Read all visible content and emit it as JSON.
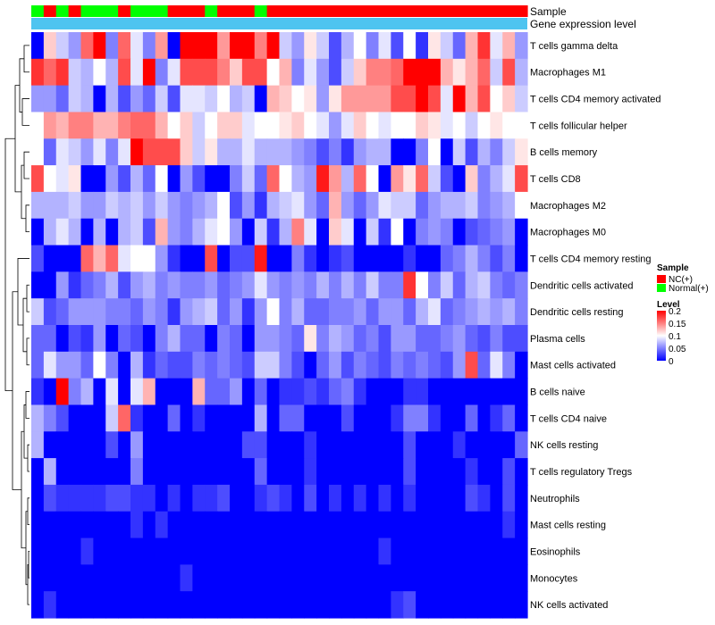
{
  "chart_data": {
    "type": "heatmap",
    "title": "",
    "annotation_labels": {
      "sample": "Sample",
      "gene_expression": "Gene expression level"
    },
    "rows": [
      "T cells gamma delta",
      "Macrophages M1",
      "T cells CD4 memory activated",
      "T cells follicular helper",
      "B cells memory",
      "T cells CD8",
      "Macrophages M2",
      "Macrophages M0",
      "T cells CD4 memory resting",
      "Dendritic cells activated",
      "Dendritic cells resting",
      "Plasma cells",
      "Mast cells activated",
      "B cells naive",
      "T cells CD4 naive",
      "NK cells resting",
      "T cells regulatory  Tregs",
      "Neutrophils",
      "Mast cells resting",
      "Eosinophils",
      "Monocytes",
      "NK cells activated"
    ],
    "samples": [
      "G",
      "R",
      "G",
      "R",
      "G",
      "G",
      "G",
      "R",
      "G",
      "G",
      "G",
      "R",
      "R",
      "R",
      "G",
      "R",
      "R",
      "R",
      "G",
      "R",
      "R",
      "R",
      "R",
      "R",
      "R",
      "R",
      "R",
      "R",
      "R",
      "R",
      "R",
      "R",
      "R",
      "R",
      "R",
      "R",
      "R",
      "R",
      "R",
      "R"
    ],
    "values": [
      [
        0.0,
        0.12,
        0.08,
        0.06,
        0.16,
        0.2,
        0.05,
        0.16,
        0.09,
        0.05,
        0.14,
        0.0,
        0.2,
        0.2,
        0.2,
        0.14,
        0.2,
        0.2,
        0.15,
        0.2,
        0.08,
        0.06,
        0.11,
        0.08,
        0.03,
        0.07,
        0.1,
        0.05,
        0.09,
        0.03,
        0.1,
        0.02,
        0.11,
        0.08,
        0.04,
        0.13,
        0.18,
        0.09,
        0.13,
        0.06
      ],
      [
        0.18,
        0.16,
        0.18,
        0.08,
        0.07,
        0.1,
        0.07,
        0.17,
        0.09,
        0.2,
        0.05,
        0.09,
        0.17,
        0.17,
        0.17,
        0.15,
        0.12,
        0.17,
        0.17,
        0.1,
        0.13,
        0.05,
        0.09,
        0.06,
        0.03,
        0.08,
        0.12,
        0.15,
        0.15,
        0.16,
        0.2,
        0.2,
        0.2,
        0.13,
        0.11,
        0.13,
        0.16,
        0.08,
        0.17,
        0.07
      ],
      [
        0.06,
        0.06,
        0.04,
        0.08,
        0.07,
        0.0,
        0.07,
        0.03,
        0.06,
        0.04,
        0.08,
        0.03,
        0.09,
        0.09,
        0.08,
        0.1,
        0.07,
        0.08,
        0.0,
        0.13,
        0.12,
        0.1,
        0.11,
        0.06,
        0.11,
        0.14,
        0.14,
        0.14,
        0.14,
        0.17,
        0.17,
        0.2,
        0.17,
        0.09,
        0.2,
        0.13,
        0.17,
        0.1,
        0.12,
        0.08
      ],
      [
        0.1,
        0.14,
        0.13,
        0.15,
        0.15,
        0.13,
        0.13,
        0.15,
        0.16,
        0.16,
        0.13,
        0.1,
        0.12,
        0.08,
        0.1,
        0.12,
        0.12,
        0.09,
        0.1,
        0.1,
        0.11,
        0.12,
        0.1,
        0.09,
        0.06,
        0.09,
        0.12,
        0.1,
        0.09,
        0.1,
        0.1,
        0.12,
        0.11,
        0.09,
        0.1,
        0.08,
        0.1,
        0.11,
        0.1,
        0.1
      ],
      [
        0.1,
        0.04,
        0.09,
        0.08,
        0.06,
        0.09,
        0.05,
        0.09,
        0.2,
        0.17,
        0.17,
        0.17,
        0.12,
        0.08,
        0.11,
        0.07,
        0.07,
        0.09,
        0.07,
        0.07,
        0.07,
        0.06,
        0.05,
        0.03,
        0.05,
        0.02,
        0.06,
        0.07,
        0.07,
        0.0,
        0.0,
        0.05,
        0.1,
        0.0,
        0.08,
        0.03,
        0.07,
        0.05,
        0.08,
        0.11
      ],
      [
        0.17,
        0.1,
        0.09,
        0.11,
        0.0,
        0.0,
        0.06,
        0.03,
        0.07,
        0.04,
        0.1,
        0.0,
        0.06,
        0.03,
        0.0,
        0.0,
        0.05,
        0.08,
        0.04,
        0.16,
        0.1,
        0.07,
        0.06,
        0.19,
        0.14,
        0.07,
        0.16,
        0.1,
        0.0,
        0.14,
        0.11,
        0.16,
        0.08,
        0.03,
        0.0,
        0.12,
        0.05,
        0.07,
        0.09,
        0.17
      ],
      [
        0.07,
        0.07,
        0.07,
        0.08,
        0.06,
        0.06,
        0.08,
        0.07,
        0.08,
        0.06,
        0.08,
        0.06,
        0.05,
        0.06,
        0.07,
        0.1,
        0.03,
        0.06,
        0.02,
        0.07,
        0.08,
        0.09,
        0.06,
        0.04,
        0.13,
        0.06,
        0.04,
        0.06,
        0.09,
        0.08,
        0.08,
        0.04,
        0.06,
        0.07,
        0.07,
        0.08,
        0.05,
        0.06,
        0.07,
        0.1
      ],
      [
        0.0,
        0.07,
        0.09,
        0.07,
        0.0,
        0.07,
        0.0,
        0.07,
        0.08,
        0.03,
        0.13,
        0.06,
        0.05,
        0.07,
        0.09,
        0.1,
        0.06,
        0.0,
        0.08,
        0.02,
        0.07,
        0.15,
        0.09,
        0.0,
        0.12,
        0.09,
        0.0,
        0.08,
        0.02,
        0.1,
        0.0,
        0.05,
        0.06,
        0.05,
        0.0,
        0.03,
        0.04,
        0.05,
        0.06,
        0.0
      ],
      [
        0.03,
        0.0,
        0.0,
        0.0,
        0.16,
        0.13,
        0.16,
        0.09,
        0.1,
        0.1,
        0.06,
        0.02,
        0.0,
        0.0,
        0.17,
        0.0,
        0.03,
        0.03,
        0.19,
        0.0,
        0.0,
        0.05,
        0.02,
        0.0,
        0.02,
        0.03,
        0.0,
        0.0,
        0.0,
        0.0,
        0.02,
        0.0,
        0.0,
        0.04,
        0.05,
        0.07,
        0.05,
        0.03,
        0.05,
        0.0
      ],
      [
        0.0,
        0.0,
        0.06,
        0.02,
        0.04,
        0.05,
        0.07,
        0.03,
        0.06,
        0.07,
        0.05,
        0.06,
        0.05,
        0.05,
        0.06,
        0.04,
        0.05,
        0.06,
        0.09,
        0.06,
        0.05,
        0.06,
        0.05,
        0.07,
        0.05,
        0.07,
        0.05,
        0.08,
        0.05,
        0.05,
        0.18,
        0.1,
        0.05,
        0.08,
        0.04,
        0.07,
        0.08,
        0.05,
        0.04,
        0.05
      ],
      [
        0.08,
        0.03,
        0.04,
        0.06,
        0.06,
        0.06,
        0.05,
        0.05,
        0.04,
        0.06,
        0.05,
        0.02,
        0.06,
        0.07,
        0.08,
        0.04,
        0.06,
        0.02,
        0.06,
        0.1,
        0.05,
        0.07,
        0.04,
        0.04,
        0.05,
        0.05,
        0.06,
        0.04,
        0.06,
        0.06,
        0.04,
        0.07,
        0.09,
        0.04,
        0.05,
        0.06,
        0.07,
        0.06,
        0.07,
        0.05
      ],
      [
        0.04,
        0.04,
        0.0,
        0.03,
        0.02,
        0.06,
        0.0,
        0.04,
        0.03,
        0.0,
        0.05,
        0.07,
        0.04,
        0.04,
        0.0,
        0.05,
        0.04,
        0.0,
        0.06,
        0.06,
        0.05,
        0.04,
        0.11,
        0.05,
        0.07,
        0.06,
        0.04,
        0.05,
        0.03,
        0.06,
        0.06,
        0.04,
        0.04,
        0.05,
        0.06,
        0.04,
        0.03,
        0.05,
        0.03,
        0.03
      ],
      [
        0.04,
        0.09,
        0.06,
        0.06,
        0.04,
        0.1,
        0.05,
        0.0,
        0.07,
        0.02,
        0.04,
        0.03,
        0.03,
        0.05,
        0.04,
        0.05,
        0.04,
        0.03,
        0.08,
        0.08,
        0.05,
        0.03,
        0.0,
        0.04,
        0.06,
        0.03,
        0.05,
        0.04,
        0.03,
        0.05,
        0.04,
        0.05,
        0.04,
        0.03,
        0.06,
        0.17,
        0.04,
        0.09,
        0.05,
        0.0
      ],
      [
        0.02,
        0.0,
        0.2,
        0.05,
        0.07,
        0.0,
        0.09,
        0.0,
        0.09,
        0.13,
        0.0,
        0.0,
        0.0,
        0.13,
        0.04,
        0.04,
        0.06,
        0.0,
        0.04,
        0.0,
        0.02,
        0.02,
        0.03,
        0.02,
        0.04,
        0.05,
        0.02,
        0.0,
        0.0,
        0.0,
        0.02,
        0.02,
        0.0,
        0.0,
        0.0,
        0.0,
        0.0,
        0.0,
        0.0,
        0.0
      ],
      [
        0.07,
        0.05,
        0.03,
        0.0,
        0.0,
        0.0,
        0.08,
        0.16,
        0.02,
        0.0,
        0.0,
        0.04,
        0.0,
        0.02,
        0.0,
        0.0,
        0.0,
        0.0,
        0.07,
        0.0,
        0.04,
        0.04,
        0.0,
        0.0,
        0.0,
        0.03,
        0.0,
        0.0,
        0.0,
        0.02,
        0.05,
        0.05,
        0.02,
        0.0,
        0.0,
        0.04,
        0.0,
        0.02,
        0.04,
        0.0
      ],
      [
        0.07,
        0.0,
        0.0,
        0.0,
        0.0,
        0.0,
        0.03,
        0.0,
        0.06,
        0.0,
        0.0,
        0.0,
        0.0,
        0.0,
        0.0,
        0.0,
        0.0,
        0.03,
        0.03,
        0.0,
        0.0,
        0.0,
        0.02,
        0.0,
        0.0,
        0.0,
        0.0,
        0.0,
        0.0,
        0.0,
        0.03,
        0.0,
        0.0,
        0.0,
        0.02,
        0.0,
        0.0,
        0.0,
        0.0,
        0.04
      ],
      [
        0.0,
        0.07,
        0.0,
        0.0,
        0.0,
        0.0,
        0.0,
        0.0,
        0.05,
        0.0,
        0.0,
        0.0,
        0.0,
        0.0,
        0.0,
        0.0,
        0.0,
        0.0,
        0.04,
        0.0,
        0.0,
        0.0,
        0.02,
        0.0,
        0.0,
        0.0,
        0.0,
        0.0,
        0.0,
        0.0,
        0.03,
        0.0,
        0.0,
        0.0,
        0.0,
        0.02,
        0.0,
        0.0,
        0.03,
        0.0
      ],
      [
        0.0,
        0.03,
        0.02,
        0.02,
        0.02,
        0.02,
        0.03,
        0.03,
        0.02,
        0.02,
        0.0,
        0.02,
        0.0,
        0.02,
        0.02,
        0.03,
        0.0,
        0.0,
        0.02,
        0.03,
        0.02,
        0.0,
        0.03,
        0.0,
        0.02,
        0.0,
        0.02,
        0.0,
        0.02,
        0.0,
        0.02,
        0.0,
        0.0,
        0.0,
        0.0,
        0.03,
        0.02,
        0.0,
        0.03,
        0.0
      ],
      [
        0.0,
        0.0,
        0.0,
        0.0,
        0.0,
        0.0,
        0.0,
        0.0,
        0.02,
        0.0,
        0.02,
        0.0,
        0.0,
        0.0,
        0.0,
        0.0,
        0.0,
        0.0,
        0.0,
        0.0,
        0.0,
        0.0,
        0.0,
        0.0,
        0.0,
        0.0,
        0.0,
        0.0,
        0.0,
        0.0,
        0.0,
        0.0,
        0.0,
        0.0,
        0.0,
        0.0,
        0.0,
        0.0,
        0.02,
        0.0
      ],
      [
        0.0,
        0.0,
        0.0,
        0.0,
        0.02,
        0.0,
        0.0,
        0.0,
        0.0,
        0.0,
        0.0,
        0.0,
        0.0,
        0.0,
        0.0,
        0.0,
        0.0,
        0.0,
        0.0,
        0.0,
        0.0,
        0.0,
        0.0,
        0.0,
        0.0,
        0.0,
        0.0,
        0.0,
        0.02,
        0.0,
        0.0,
        0.0,
        0.0,
        0.0,
        0.0,
        0.0,
        0.0,
        0.0,
        0.0,
        0.0
      ],
      [
        0.0,
        0.0,
        0.0,
        0.0,
        0.0,
        0.0,
        0.0,
        0.0,
        0.0,
        0.0,
        0.0,
        0.0,
        0.02,
        0.0,
        0.0,
        0.0,
        0.0,
        0.0,
        0.0,
        0.0,
        0.0,
        0.0,
        0.0,
        0.0,
        0.0,
        0.0,
        0.0,
        0.0,
        0.0,
        0.0,
        0.0,
        0.0,
        0.0,
        0.0,
        0.0,
        0.0,
        0.0,
        0.0,
        0.0,
        0.0
      ],
      [
        0.0,
        0.02,
        0.0,
        0.0,
        0.0,
        0.0,
        0.0,
        0.0,
        0.0,
        0.0,
        0.0,
        0.0,
        0.0,
        0.0,
        0.0,
        0.0,
        0.0,
        0.0,
        0.0,
        0.0,
        0.0,
        0.0,
        0.0,
        0.0,
        0.0,
        0.0,
        0.0,
        0.0,
        0.0,
        0.02,
        0.03,
        0.0,
        0.0,
        0.0,
        0.0,
        0.0,
        0.0,
        0.0,
        0.0,
        0.0
      ]
    ],
    "color_scale": {
      "min": 0,
      "max": 0.2,
      "low_color": "#0000ff",
      "mid_color": "#ffffff",
      "high_color": "#ff0000",
      "mid_value": 0.1
    },
    "legend": {
      "sample_title": "Sample",
      "sample_items": [
        {
          "label": "NC(+)",
          "color": "#ff0000"
        },
        {
          "label": "Normal(+)",
          "color": "#00ff00"
        }
      ],
      "level_title": "Level",
      "level_ticks": [
        "0.2",
        "0.15",
        "0.1",
        "0.05",
        "0"
      ],
      "level_tick_values": [
        0.2,
        0.15,
        0.1,
        0.05,
        0
      ]
    },
    "expression_bar_color": "#4ec4f0",
    "sample_colors": {
      "R": "#ff0000",
      "G": "#00ff00"
    }
  }
}
